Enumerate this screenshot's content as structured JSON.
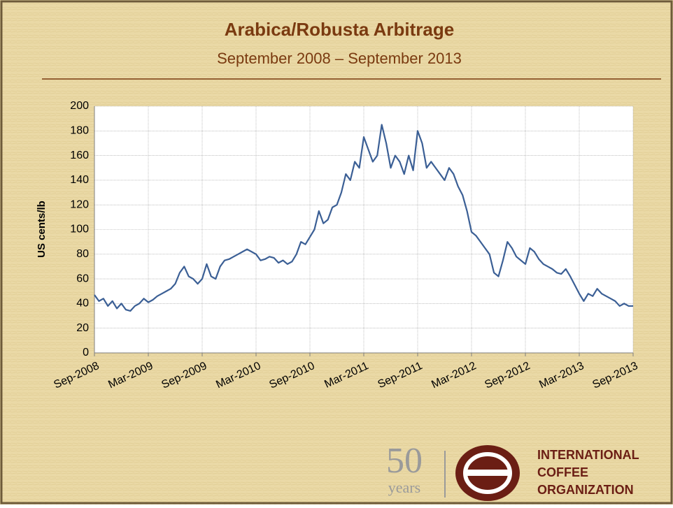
{
  "chart_data": {
    "type": "line",
    "title": "Arabica/Robusta Arbitrage",
    "subtitle": "September 2008 – September 2013",
    "y_label": "US cents/lb",
    "categories": [
      "Sep-2008",
      null,
      null,
      null,
      null,
      null,
      null,
      null,
      null,
      null,
      null,
      null,
      "Mar-2009",
      null,
      null,
      null,
      null,
      null,
      null,
      null,
      null,
      null,
      null,
      null,
      "Sep-2009",
      null,
      null,
      null,
      null,
      null,
      null,
      null,
      null,
      null,
      null,
      null,
      "Mar-2010",
      null,
      null,
      null,
      null,
      null,
      null,
      null,
      null,
      null,
      null,
      null,
      "Sep-2010",
      null,
      null,
      null,
      null,
      null,
      null,
      null,
      null,
      null,
      null,
      null,
      "Mar-2011",
      null,
      null,
      null,
      null,
      null,
      null,
      null,
      null,
      null,
      null,
      null,
      "Sep-2011",
      null,
      null,
      null,
      null,
      null,
      null,
      null,
      null,
      null,
      null,
      null,
      "Mar-2012",
      null,
      null,
      null,
      null,
      null,
      null,
      null,
      null,
      null,
      null,
      null,
      "Sep-2012",
      null,
      null,
      null,
      null,
      null,
      null,
      null,
      null,
      null,
      null,
      null,
      "Mar-2013",
      null,
      null,
      null,
      null,
      null,
      null,
      null,
      null,
      null,
      null,
      null,
      "Sep-2013"
    ],
    "series": [
      {
        "name": "Arbitrage",
        "color": "#3b5f95",
        "values": [
          47,
          42,
          44,
          38,
          42,
          36,
          40,
          35,
          34,
          38,
          40,
          44,
          41,
          43,
          46,
          48,
          50,
          52,
          56,
          65,
          70,
          62,
          60,
          56,
          60,
          72,
          62,
          60,
          70,
          75,
          76,
          78,
          80,
          82,
          84,
          82,
          80,
          75,
          76,
          78,
          77,
          73,
          75,
          72,
          74,
          80,
          90,
          88,
          94,
          100,
          115,
          105,
          108,
          118,
          120,
          130,
          145,
          140,
          155,
          150,
          175,
          165,
          155,
          160,
          185,
          170,
          150,
          160,
          155,
          145,
          160,
          148,
          180,
          170,
          150,
          155,
          150,
          145,
          140,
          150,
          145,
          135,
          128,
          115,
          98,
          95,
          90,
          85,
          80,
          65,
          62,
          75,
          90,
          85,
          78,
          75,
          72,
          85,
          82,
          76,
          72,
          70,
          68,
          65,
          64,
          68,
          62,
          55,
          48,
          42,
          48,
          46,
          52,
          48,
          46,
          44,
          42,
          38,
          40,
          38,
          38
        ]
      }
    ],
    "ylim": [
      0,
      200
    ],
    "yticks": [
      0,
      20,
      40,
      60,
      80,
      100,
      120,
      140,
      160,
      180,
      200
    ],
    "grid": true
  },
  "logo": {
    "number": "50",
    "years": "years",
    "line1": "INTERNATIONAL",
    "line2": "COFFEE",
    "line3": "ORGANIZATION"
  }
}
